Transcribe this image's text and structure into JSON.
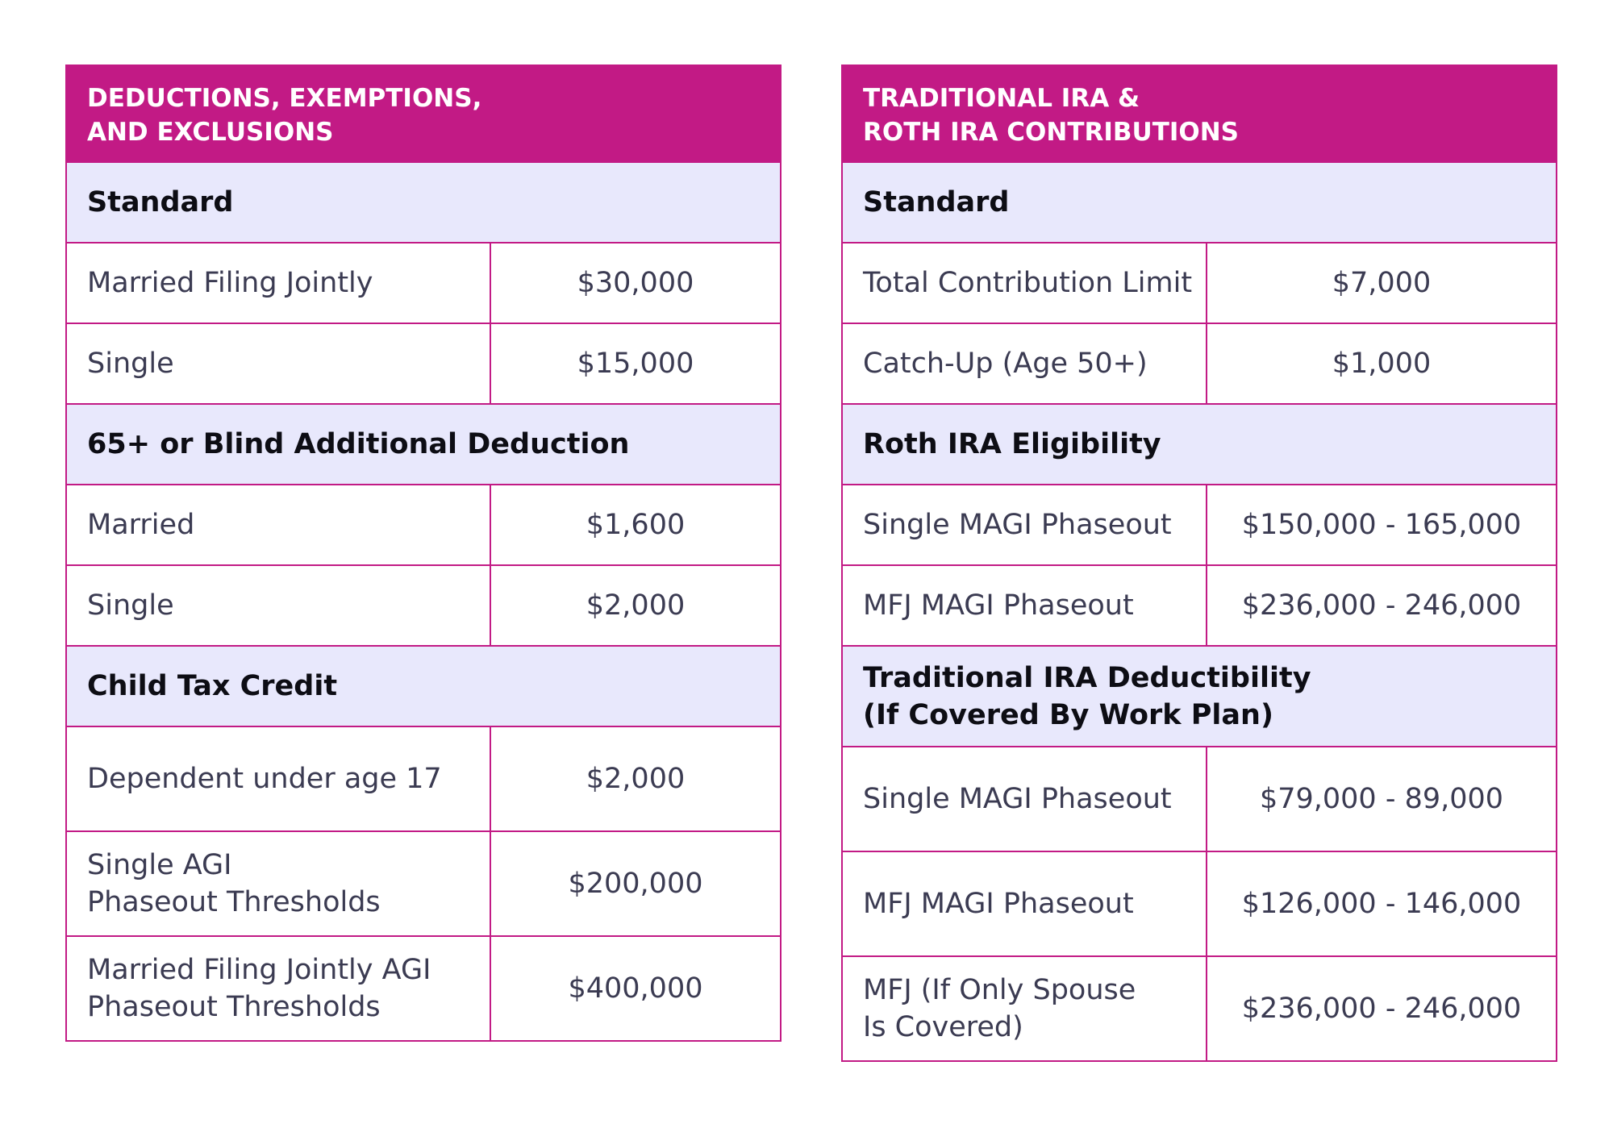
{
  "left": {
    "title_line1": "DEDUCTIONS, EXEMPTIONS,",
    "title_line2": "AND EXCLUSIONS",
    "sections": [
      {
        "heading": "Standard",
        "rows": [
          {
            "label": "Married Filing Jointly",
            "value": "$30,000"
          },
          {
            "label": "Single",
            "value": "$15,000"
          }
        ]
      },
      {
        "heading": "65+ or Blind Additional Deduction",
        "rows": [
          {
            "label": "Married",
            "value": "$1,600"
          },
          {
            "label": "Single",
            "value": "$2,000"
          }
        ]
      },
      {
        "heading": "Child Tax Credit",
        "rows": [
          {
            "label": "Dependent under age 17",
            "value": "$2,000"
          },
          {
            "label_line1": "Single AGI",
            "label_line2": "Phaseout Thresholds",
            "value": "$200,000"
          },
          {
            "label_line1": "Married Filing Jointly AGI",
            "label_line2": "Phaseout Thresholds",
            "value": "$400,000"
          }
        ]
      }
    ]
  },
  "right": {
    "title_line1": "TRADITIONAL IRA &",
    "title_line2": "ROTH IRA CONTRIBUTIONS",
    "sections": [
      {
        "heading": "Standard",
        "rows": [
          {
            "label": "Total Contribution Limit",
            "value": "$7,000"
          },
          {
            "label": "Catch-Up (Age 50+)",
            "value": "$1,000"
          }
        ]
      },
      {
        "heading": "Roth IRA Eligibility",
        "rows": [
          {
            "label": "Single MAGI Phaseout",
            "value": "$150,000 - 165,000"
          },
          {
            "label": "MFJ MAGI Phaseout",
            "value": "$236,000 - 246,000"
          }
        ]
      },
      {
        "heading_line1": "Traditional IRA Deductibility",
        "heading_line2": "(If Covered By Work Plan)",
        "rows": [
          {
            "label": "Single MAGI Phaseout",
            "value": "$79,000 - 89,000"
          },
          {
            "label": "MFJ MAGI Phaseout",
            "value": "$126,000 - 146,000"
          },
          {
            "label_line1": "MFJ (If Only Spouse",
            "label_line2": "Is Covered)",
            "value": "$236,000 - 246,000"
          }
        ]
      }
    ]
  },
  "colors": {
    "header_bg": "#c21a85",
    "section_bg": "#e8e8fc",
    "border": "#c21a85"
  }
}
